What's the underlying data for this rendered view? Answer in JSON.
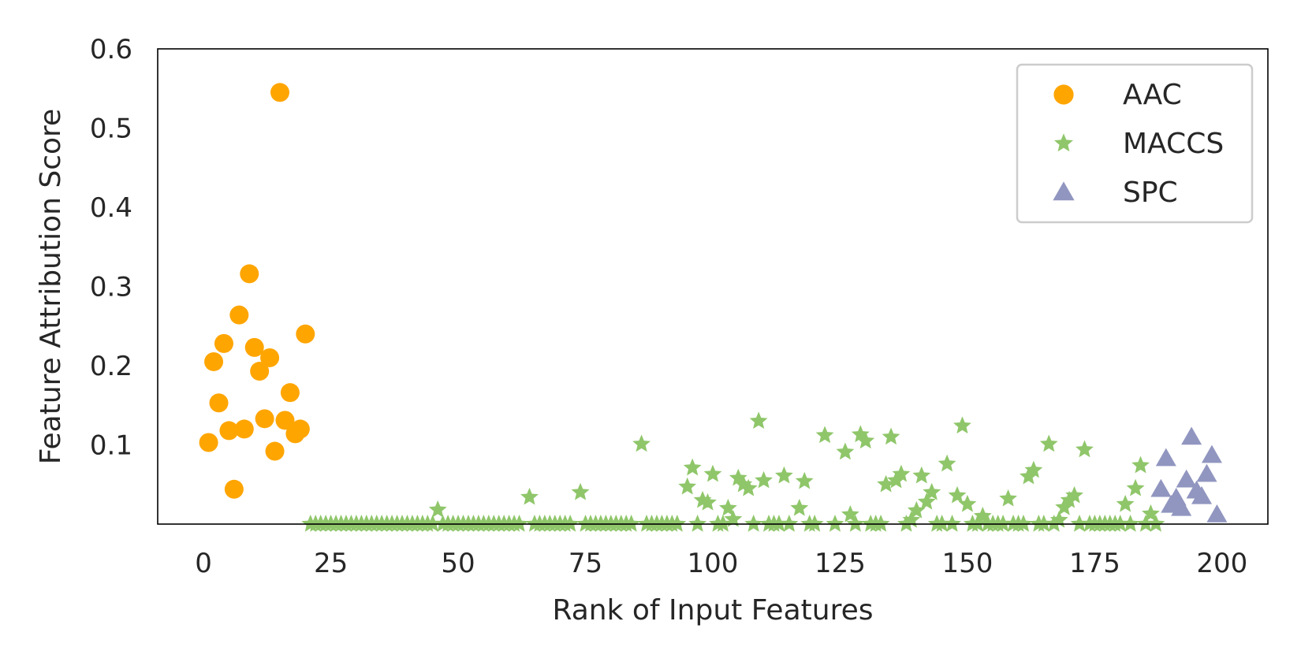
{
  "chart_data": {
    "type": "scatter",
    "xlabel": "Rank of Input Features",
    "ylabel": "Feature Attribution Score",
    "xlim": [
      -9,
      209
    ],
    "ylim": [
      0,
      0.6
    ],
    "xticks": [
      0,
      25,
      50,
      75,
      100,
      125,
      150,
      175,
      200
    ],
    "yticks": [
      0.1,
      0.2,
      0.3,
      0.4,
      0.5,
      0.6
    ],
    "grid": false,
    "legend_position": "top-right",
    "colors": {
      "AAC": "#ffa500",
      "MACCS": "#8fc66a",
      "SPC": "#9196c0"
    },
    "series": [
      {
        "name": "AAC",
        "marker": "circle",
        "points": [
          [
            1,
            0.103
          ],
          [
            2,
            0.205
          ],
          [
            3,
            0.153
          ],
          [
            4,
            0.228
          ],
          [
            5,
            0.118
          ],
          [
            6,
            0.044
          ],
          [
            7,
            0.264
          ],
          [
            8,
            0.12
          ],
          [
            9,
            0.316
          ],
          [
            10,
            0.223
          ],
          [
            11,
            0.193
          ],
          [
            12,
            0.133
          ],
          [
            13,
            0.21
          ],
          [
            14,
            0.092
          ],
          [
            15,
            0.545
          ],
          [
            16,
            0.131
          ],
          [
            17,
            0.166
          ],
          [
            18,
            0.114
          ],
          [
            19,
            0.12
          ],
          [
            20,
            0.24
          ]
        ]
      },
      {
        "name": "MACCS",
        "marker": "star",
        "points": [
          [
            21,
            0.0
          ],
          [
            22,
            0.0
          ],
          [
            23,
            0.0
          ],
          [
            24,
            0.0
          ],
          [
            25,
            0.0
          ],
          [
            26,
            0.0
          ],
          [
            27,
            0.0
          ],
          [
            28,
            0.0
          ],
          [
            29,
            0.0
          ],
          [
            30,
            0.0
          ],
          [
            31,
            0.0
          ],
          [
            32,
            0.0
          ],
          [
            33,
            0.0
          ],
          [
            34,
            0.0
          ],
          [
            35,
            0.0
          ],
          [
            36,
            0.0
          ],
          [
            37,
            0.0
          ],
          [
            38,
            0.0
          ],
          [
            39,
            0.0
          ],
          [
            40,
            0.0
          ],
          [
            41,
            0.0
          ],
          [
            42,
            0.0
          ],
          [
            43,
            0.0
          ],
          [
            44,
            0.0
          ],
          [
            45,
            0.0
          ],
          [
            46,
            0.018
          ],
          [
            47,
            0.0
          ],
          [
            48,
            0.0
          ],
          [
            49,
            0.0
          ],
          [
            50,
            0.0
          ],
          [
            51,
            0.0
          ],
          [
            52,
            0.0
          ],
          [
            53,
            0.0
          ],
          [
            54,
            0.0
          ],
          [
            55,
            0.0
          ],
          [
            56,
            0.0
          ],
          [
            57,
            0.0
          ],
          [
            58,
            0.0
          ],
          [
            59,
            0.0
          ],
          [
            60,
            0.0
          ],
          [
            61,
            0.0
          ],
          [
            62,
            0.0
          ],
          [
            64,
            0.034
          ],
          [
            65,
            0.0
          ],
          [
            66,
            0.0
          ],
          [
            67,
            0.0
          ],
          [
            68,
            0.0
          ],
          [
            69,
            0.0
          ],
          [
            70,
            0.0
          ],
          [
            71,
            0.0
          ],
          [
            72,
            0.0
          ],
          [
            74,
            0.04
          ],
          [
            75,
            0.0
          ],
          [
            76,
            0.0
          ],
          [
            77,
            0.0
          ],
          [
            78,
            0.0
          ],
          [
            79,
            0.0
          ],
          [
            80,
            0.0
          ],
          [
            81,
            0.0
          ],
          [
            82,
            0.0
          ],
          [
            83,
            0.0
          ],
          [
            84,
            0.0
          ],
          [
            86,
            0.101
          ],
          [
            87,
            0.0
          ],
          [
            88,
            0.0
          ],
          [
            89,
            0.0
          ],
          [
            90,
            0.0
          ],
          [
            91,
            0.0
          ],
          [
            92,
            0.0
          ],
          [
            93,
            0.0
          ],
          [
            95,
            0.047
          ],
          [
            96,
            0.071
          ],
          [
            97,
            0.0
          ],
          [
            98,
            0.03
          ],
          [
            99,
            0.027
          ],
          [
            100,
            0.063
          ],
          [
            101,
            0.0
          ],
          [
            102,
            0.0
          ],
          [
            103,
            0.02
          ],
          [
            104,
            0.006
          ],
          [
            105,
            0.058
          ],
          [
            106,
            0.05
          ],
          [
            107,
            0.045
          ],
          [
            108,
            0.0
          ],
          [
            109,
            0.13
          ],
          [
            110,
            0.055
          ],
          [
            111,
            0.0
          ],
          [
            112,
            0.0
          ],
          [
            113,
            0.0
          ],
          [
            114,
            0.061
          ],
          [
            115,
            0.0
          ],
          [
            117,
            0.02
          ],
          [
            118,
            0.054
          ],
          [
            119,
            0.0
          ],
          [
            120,
            0.0
          ],
          [
            122,
            0.112
          ],
          [
            124,
            0.0
          ],
          [
            126,
            0.091
          ],
          [
            127,
            0.012
          ],
          [
            128,
            0.0
          ],
          [
            129,
            0.113
          ],
          [
            130,
            0.105
          ],
          [
            131,
            0.0
          ],
          [
            132,
            0.0
          ],
          [
            133,
            0.0
          ],
          [
            134,
            0.05
          ],
          [
            135,
            0.11
          ],
          [
            136,
            0.055
          ],
          [
            137,
            0.063
          ],
          [
            138,
            0.0
          ],
          [
            139,
            0.005
          ],
          [
            140,
            0.017
          ],
          [
            141,
            0.061
          ],
          [
            142,
            0.028
          ],
          [
            143,
            0.04
          ],
          [
            144,
            0.0
          ],
          [
            145,
            0.0
          ],
          [
            146,
            0.076
          ],
          [
            147,
            0.0
          ],
          [
            148,
            0.036
          ],
          [
            149,
            0.124
          ],
          [
            150,
            0.025
          ],
          [
            151,
            0.0
          ],
          [
            152,
            0.0
          ],
          [
            153,
            0.01
          ],
          [
            154,
            0.0
          ],
          [
            155,
            0.0
          ],
          [
            156,
            0.0
          ],
          [
            157,
            0.0
          ],
          [
            158,
            0.032
          ],
          [
            159,
            0.0
          ],
          [
            160,
            0.0
          ],
          [
            161,
            0.0
          ],
          [
            162,
            0.06
          ],
          [
            163,
            0.068
          ],
          [
            164,
            0.0
          ],
          [
            165,
            0.0
          ],
          [
            166,
            0.101
          ],
          [
            167,
            0.0
          ],
          [
            168,
            0.005
          ],
          [
            169,
            0.021
          ],
          [
            170,
            0.03
          ],
          [
            171,
            0.036
          ],
          [
            172,
            0.0
          ],
          [
            173,
            0.094
          ],
          [
            174,
            0.0
          ],
          [
            175,
            0.0
          ],
          [
            176,
            0.0
          ],
          [
            177,
            0.0
          ],
          [
            178,
            0.0
          ],
          [
            179,
            0.0
          ],
          [
            180,
            0.0
          ],
          [
            181,
            0.025
          ],
          [
            182,
            0.0
          ],
          [
            183,
            0.045
          ],
          [
            184,
            0.074
          ],
          [
            185,
            0.0
          ],
          [
            186,
            0.013
          ],
          [
            187,
            0.0
          ]
        ]
      },
      {
        "name": "SPC",
        "marker": "triangle",
        "points": [
          [
            188,
            0.044
          ],
          [
            189,
            0.083
          ],
          [
            190,
            0.024
          ],
          [
            191,
            0.033
          ],
          [
            192,
            0.02
          ],
          [
            193,
            0.056
          ],
          [
            194,
            0.11
          ],
          [
            195,
            0.042
          ],
          [
            196,
            0.035
          ],
          [
            197,
            0.063
          ],
          [
            198,
            0.087
          ],
          [
            199,
            0.012
          ]
        ]
      }
    ]
  }
}
